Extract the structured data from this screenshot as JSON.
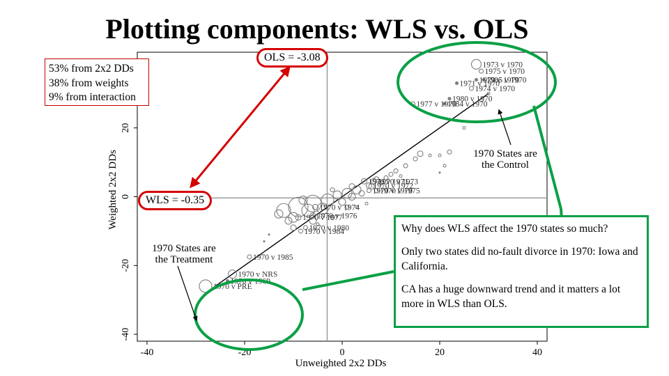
{
  "title": "Plotting components: WLS vs. OLS",
  "shares_box": {
    "lines": [
      "53% from 2x2 DDs",
      "38% from weights",
      "9% from interaction"
    ]
  },
  "callouts": {
    "ols": "OLS = -3.08",
    "wls": "WLS = -0.35",
    "control": [
      "1970 States are",
      "the Control"
    ],
    "treatment": [
      "1970 States are",
      "the Treatment"
    ]
  },
  "explanation": {
    "question": "Why does WLS affect the 1970 states so much?",
    "fact": "Only two states did no-fault divorce in 1970: Iowa and California.",
    "conclusion": "CA has a huge downward trend and it matters a lot more in WLS than OLS."
  },
  "colors": {
    "red": "#d40000",
    "green": "#0aa046",
    "marker": "#7f7f7f",
    "line": "#000000"
  },
  "chart_data": {
    "type": "scatter",
    "xlabel": "Unweighted 2x2 DDs",
    "ylabel": "Weighted 2x2 DDs",
    "xticks": [
      -40,
      -20,
      0,
      20,
      40
    ],
    "yticks": [
      -40,
      -20,
      0,
      20
    ],
    "xlim": [
      -42,
      42
    ],
    "ylim": [
      -42,
      42
    ],
    "reference_lines": {
      "x": -3.08,
      "y": -0.35
    },
    "fit_line": {
      "x": [
        -28,
        30
      ],
      "y": [
        -28,
        30
      ]
    },
    "labeled_points": [
      {
        "label": "1973 v 1970",
        "x": 27.5,
        "y": 38.5,
        "size": 7
      },
      {
        "label": "1975 v 1970",
        "x": 28.5,
        "y": 36.5,
        "size": 3
      },
      {
        "label": "1979 v 1970",
        "x": 27.5,
        "y": 34,
        "size": 2
      },
      {
        "label": "1985 v 1970",
        "x": 29,
        "y": 34,
        "size": 2
      },
      {
        "label": "1971 v 1970",
        "x": 23.5,
        "y": 33,
        "size": 2
      },
      {
        "label": "1974 v 1970",
        "x": 26.5,
        "y": 31.5,
        "size": 3
      },
      {
        "label": "1980 v 1970",
        "x": 22,
        "y": 28.5,
        "size": 2
      },
      {
        "label": "1977 v 1970",
        "x": 14.5,
        "y": 27,
        "size": 3
      },
      {
        "label": "1984 v 1970",
        "x": 21,
        "y": 27,
        "size": 2
      },
      {
        "label": "1970 v 1971",
        "x": 4.5,
        "y": 4.5,
        "size": 4
      },
      {
        "label": "1970 v 1973",
        "x": 6.5,
        "y": 4.5,
        "size": 4
      },
      {
        "label": "1970 v 1972",
        "x": 5.5,
        "y": 3.2,
        "size": 4
      },
      {
        "label": "1970 v 1970",
        "x": 5.5,
        "y": 1.8,
        "size": 3
      },
      {
        "label": "1970 v 1975",
        "x": 7,
        "y": 1.8,
        "size": 3
      },
      {
        "label": "1970 v 1974",
        "x": -5.5,
        "y": -3,
        "size": 4
      },
      {
        "label": "1970 v 1976",
        "x": -6,
        "y": -5.5,
        "size": 4
      },
      {
        "label": "1970 v 1977",
        "x": -9,
        "y": -6,
        "size": 4
      },
      {
        "label": "1970 v 1980",
        "x": -7.5,
        "y": -9,
        "size": 3
      },
      {
        "label": "1970 v 1984",
        "x": -8.5,
        "y": -10,
        "size": 3
      },
      {
        "label": "1970 v 1985",
        "x": -19,
        "y": -17.5,
        "size": 3
      },
      {
        "label": "1970 v NRS",
        "x": -22.5,
        "y": -22.5,
        "size": 6
      },
      {
        "label": "1970 v 1969",
        "x": -23.5,
        "y": -24.5,
        "size": 2
      },
      {
        "label": "1970 v PRE",
        "x": -28,
        "y": -26,
        "size": 9
      }
    ],
    "points": [
      {
        "x": -12,
        "y": -4,
        "size": 10
      },
      {
        "x": -9,
        "y": -3,
        "size": 14
      },
      {
        "x": -6,
        "y": -2,
        "size": 12
      },
      {
        "x": -3,
        "y": -1,
        "size": 9
      },
      {
        "x": -1,
        "y": 0.5,
        "size": 6
      },
      {
        "x": 1,
        "y": 1,
        "size": 7
      },
      {
        "x": 3,
        "y": 2,
        "size": 6
      },
      {
        "x": -4,
        "y": -3.5,
        "size": 8
      },
      {
        "x": -7,
        "y": -4,
        "size": 9
      },
      {
        "x": -10,
        "y": -6,
        "size": 7
      },
      {
        "x": -13,
        "y": -5,
        "size": 6
      },
      {
        "x": -11,
        "y": -7,
        "size": 5
      },
      {
        "x": -8,
        "y": -1,
        "size": 6
      },
      {
        "x": 0,
        "y": -1.5,
        "size": 5
      },
      {
        "x": 2,
        "y": 0,
        "size": 5
      },
      {
        "x": 4,
        "y": 1,
        "size": 4
      },
      {
        "x": 6,
        "y": 3,
        "size": 4
      },
      {
        "x": 8,
        "y": 4,
        "size": 3
      },
      {
        "x": 9,
        "y": 5.5,
        "size": 3
      },
      {
        "x": 10,
        "y": 6.5,
        "size": 3
      },
      {
        "x": 11,
        "y": 7.5,
        "size": 3
      },
      {
        "x": 13,
        "y": 9,
        "size": 3
      },
      {
        "x": 15,
        "y": 11,
        "size": 3
      },
      {
        "x": 16,
        "y": 12.5,
        "size": 4
      },
      {
        "x": 18,
        "y": 12,
        "size": 2
      },
      {
        "x": 20,
        "y": 12,
        "size": 2
      },
      {
        "x": 22,
        "y": 13,
        "size": 3
      },
      {
        "x": 21,
        "y": 9,
        "size": 2
      },
      {
        "x": 20,
        "y": 7,
        "size": 1
      },
      {
        "x": 12,
        "y": 6,
        "size": 2
      },
      {
        "x": 5,
        "y": -2,
        "size": 2
      },
      {
        "x": 3,
        "y": -3,
        "size": 2
      },
      {
        "x": 1,
        "y": -3,
        "size": 3
      },
      {
        "x": -2,
        "y": -6,
        "size": 3
      },
      {
        "x": -5,
        "y": -8,
        "size": 2
      },
      {
        "x": -15,
        "y": -11,
        "size": 1
      },
      {
        "x": -16,
        "y": -13,
        "size": 1
      },
      {
        "x": 7,
        "y": 5,
        "size": 4
      },
      {
        "x": 2,
        "y": 3,
        "size": 4
      },
      {
        "x": -2,
        "y": 2,
        "size": 3
      },
      {
        "x": -10,
        "y": -9,
        "size": 4
      },
      {
        "x": -6,
        "y": -7,
        "size": 5
      },
      {
        "x": 25,
        "y": 20,
        "size": 2
      },
      {
        "x": 30,
        "y": 30,
        "size": 2
      }
    ]
  }
}
